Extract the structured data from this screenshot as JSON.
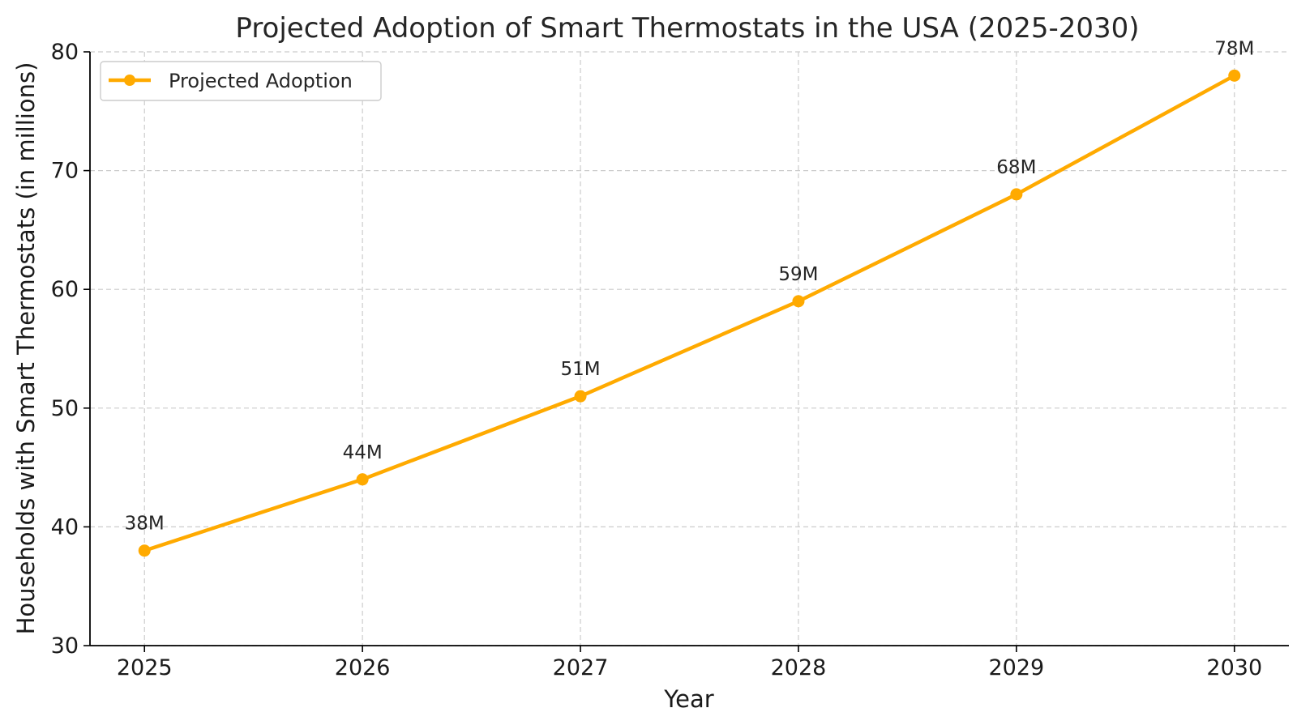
{
  "chart_data": {
    "type": "line",
    "title": "Projected Adoption of Smart Thermostats in the USA (2025-2030)",
    "xlabel": "Year",
    "ylabel": "Households with Smart Thermostats (in millions)",
    "x": [
      2025,
      2026,
      2027,
      2028,
      2029,
      2030
    ],
    "x_tick_labels": [
      "2025",
      "2026",
      "2027",
      "2028",
      "2029",
      "2030"
    ],
    "series": [
      {
        "name": "Projected Adoption",
        "values": [
          38,
          44,
          51,
          59,
          68,
          78
        ],
        "data_labels": [
          "38M",
          "44M",
          "51M",
          "59M",
          "68M",
          "78M"
        ],
        "color": "#FFAA00",
        "marker": "circle"
      }
    ],
    "ylim": [
      30,
      80
    ],
    "y_ticks": [
      30,
      40,
      50,
      60,
      70,
      80
    ],
    "y_tick_labels": [
      "30",
      "40",
      "50",
      "60",
      "70",
      "80"
    ],
    "grid": true,
    "grid_style": "dashed",
    "legend_position": "top-left"
  }
}
